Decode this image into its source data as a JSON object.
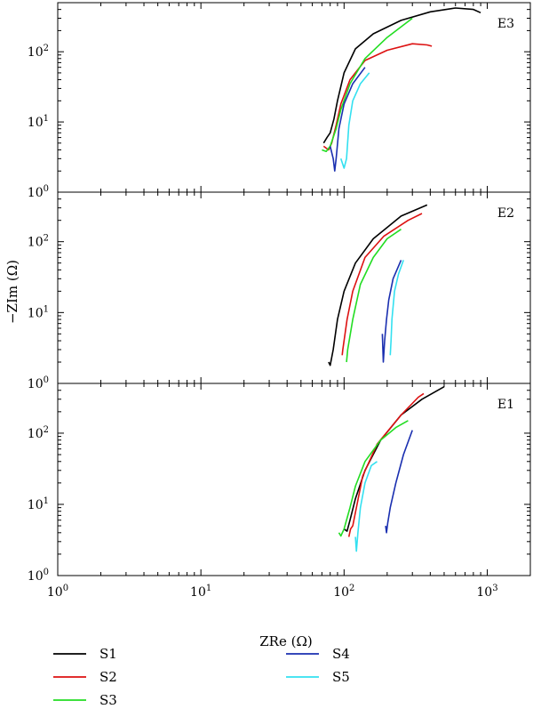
{
  "chart_data": {
    "type": "line",
    "x_scale": "log",
    "y_scale": "log",
    "xlabel": "ZRe (Ω)",
    "ylabel": "−ZIm (Ω)",
    "xlim": [
      1,
      2000
    ],
    "ylim": [
      1,
      500
    ],
    "x_ticks": [
      {
        "value": 1,
        "base": "10",
        "exp": "0"
      },
      {
        "value": 10,
        "base": "10",
        "exp": "1"
      },
      {
        "value": 100,
        "base": "10",
        "exp": "2"
      },
      {
        "value": 1000,
        "base": "10",
        "exp": "3"
      }
    ],
    "y_ticks": [
      {
        "value": 1,
        "base": "10",
        "exp": "0"
      },
      {
        "value": 10,
        "base": "10",
        "exp": "1"
      },
      {
        "value": 100,
        "base": "10",
        "exp": "2"
      }
    ],
    "colors": {
      "S1": "#000000",
      "S2": "#dd1111",
      "S3": "#22dd22",
      "S4": "#1a2fb0",
      "S5": "#33e0f0"
    },
    "legend": {
      "placement": "bottom",
      "entries": [
        "S1",
        "S2",
        "S3",
        "S4",
        "S5"
      ]
    },
    "panels": [
      {
        "label": "E3",
        "series": [
          {
            "name": "S1",
            "points": [
              [
                72,
                5
              ],
              [
                76,
                6
              ],
              [
                80,
                7
              ],
              [
                85,
                11
              ],
              [
                90,
                20
              ],
              [
                100,
                50
              ],
              [
                120,
                110
              ],
              [
                160,
                180
              ],
              [
                250,
                280
              ],
              [
                400,
                370
              ],
              [
                600,
                420
              ],
              [
                800,
                400
              ],
              [
                900,
                360
              ]
            ]
          },
          {
            "name": "S2",
            "points": [
              [
                72,
                4.5
              ],
              [
                78,
                4
              ],
              [
                82,
                5
              ],
              [
                88,
                9
              ],
              [
                95,
                18
              ],
              [
                110,
                40
              ],
              [
                140,
                75
              ],
              [
                200,
                105
              ],
              [
                300,
                130
              ],
              [
                380,
                125
              ],
              [
                410,
                120
              ]
            ]
          },
          {
            "name": "S3",
            "points": [
              [
                70,
                4
              ],
              [
                75,
                3.8
              ],
              [
                80,
                4.5
              ],
              [
                88,
                8
              ],
              [
                95,
                15
              ],
              [
                110,
                35
              ],
              [
                140,
                80
              ],
              [
                200,
                160
              ],
              [
                300,
                300
              ]
            ]
          },
          {
            "name": "S4",
            "points": [
              [
                80,
                4.5
              ],
              [
                84,
                3
              ],
              [
                86,
                2
              ],
              [
                88,
                3
              ],
              [
                92,
                8
              ],
              [
                100,
                18
              ],
              [
                115,
                35
              ],
              [
                140,
                60
              ]
            ]
          },
          {
            "name": "S5",
            "points": [
              [
                95,
                3
              ],
              [
                100,
                2.2
              ],
              [
                104,
                3
              ],
              [
                108,
                9
              ],
              [
                115,
                20
              ],
              [
                130,
                35
              ],
              [
                150,
                50
              ]
            ]
          }
        ]
      },
      {
        "label": "E2",
        "series": [
          {
            "name": "S1",
            "points": [
              [
                78,
                2
              ],
              [
                80,
                1.8
              ],
              [
                84,
                3
              ],
              [
                90,
                8
              ],
              [
                100,
                20
              ],
              [
                120,
                50
              ],
              [
                160,
                110
              ],
              [
                250,
                230
              ],
              [
                380,
                330
              ]
            ]
          },
          {
            "name": "S2",
            "points": [
              [
                97,
                2.5
              ],
              [
                98,
                3
              ],
              [
                105,
                8
              ],
              [
                115,
                20
              ],
              [
                140,
                60
              ],
              [
                190,
                120
              ],
              [
                280,
                200
              ],
              [
                350,
                250
              ]
            ]
          },
          {
            "name": "S3",
            "points": [
              [
                104,
                2
              ],
              [
                106,
                3
              ],
              [
                115,
                8
              ],
              [
                130,
                25
              ],
              [
                160,
                60
              ],
              [
                200,
                110
              ],
              [
                250,
                150
              ]
            ]
          },
          {
            "name": "S4",
            "points": [
              [
                185,
                5
              ],
              [
                188,
                2
              ],
              [
                192,
                4
              ],
              [
                198,
                8
              ],
              [
                205,
                15
              ],
              [
                220,
                30
              ],
              [
                250,
                55
              ]
            ]
          },
          {
            "name": "S5",
            "points": [
              [
                210,
                2.5
              ],
              [
                213,
                4
              ],
              [
                216,
                8
              ],
              [
                225,
                20
              ],
              [
                240,
                35
              ],
              [
                260,
                55
              ]
            ]
          }
        ]
      },
      {
        "label": "E1",
        "series": [
          {
            "name": "S1",
            "points": [
              [
                100,
                4.5
              ],
              [
                105,
                4.2
              ],
              [
                110,
                6
              ],
              [
                120,
                12
              ],
              [
                140,
                30
              ],
              [
                180,
                80
              ],
              [
                250,
                180
              ],
              [
                350,
                300
              ],
              [
                500,
                450
              ]
            ]
          },
          {
            "name": "S2",
            "points": [
              [
                108,
                3.5
              ],
              [
                111,
                4.5
              ],
              [
                115,
                5
              ],
              [
                122,
                9
              ],
              [
                135,
                25
              ],
              [
                170,
                70
              ],
              [
                250,
                180
              ],
              [
                330,
                320
              ],
              [
                360,
                360
              ]
            ]
          },
          {
            "name": "S3",
            "points": [
              [
                92,
                4
              ],
              [
                95,
                3.6
              ],
              [
                100,
                4.5
              ],
              [
                110,
                9
              ],
              [
                120,
                18
              ],
              [
                140,
                40
              ],
              [
                180,
                80
              ],
              [
                230,
                120
              ],
              [
                280,
                150
              ]
            ]
          },
          {
            "name": "S4",
            "points": [
              [
                195,
                5
              ],
              [
                198,
                4
              ],
              [
                202,
                5.5
              ],
              [
                210,
                9
              ],
              [
                230,
                20
              ],
              [
                260,
                50
              ],
              [
                300,
                110
              ]
            ]
          },
          {
            "name": "S5",
            "points": [
              [
                120,
                3.5
              ],
              [
                122,
                2.2
              ],
              [
                125,
                4
              ],
              [
                130,
                9
              ],
              [
                140,
                20
              ],
              [
                155,
                35
              ],
              [
                170,
                40
              ]
            ]
          }
        ]
      }
    ]
  }
}
